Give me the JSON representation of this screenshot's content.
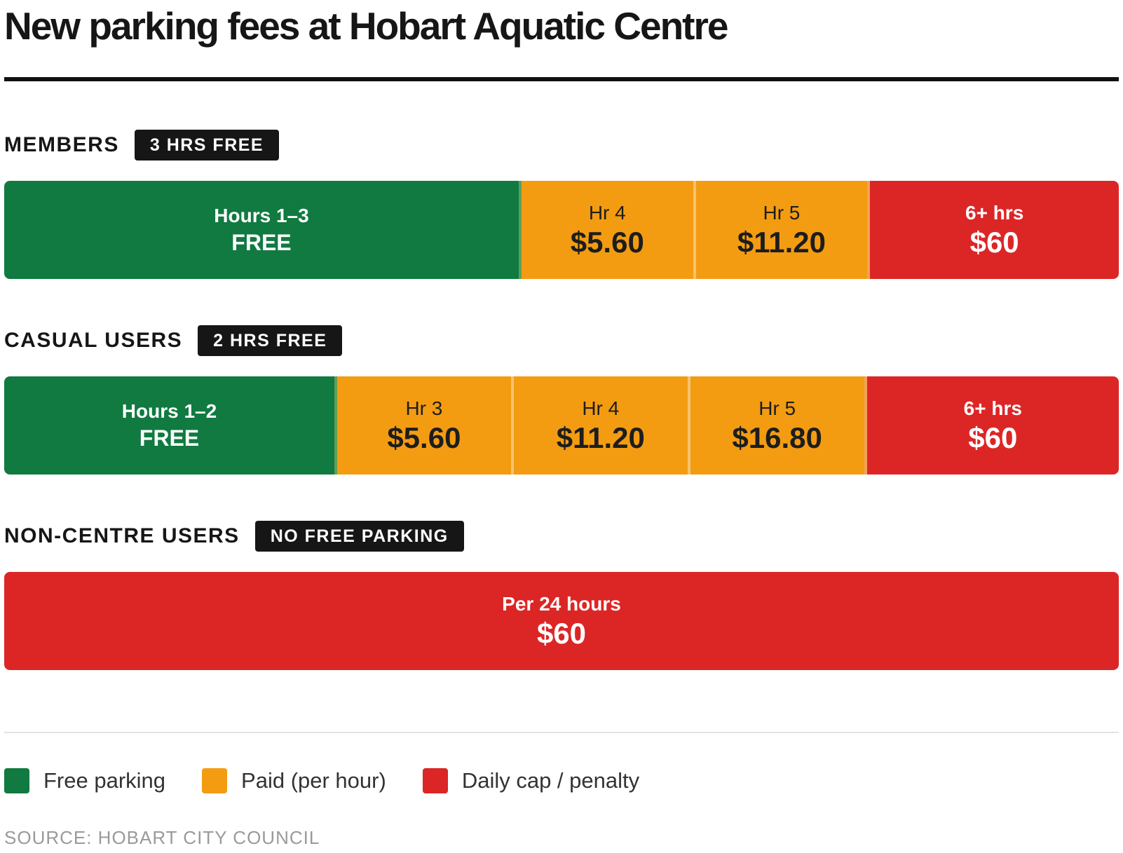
{
  "title": "New parking fees at Hobart Aquatic Centre",
  "colors": {
    "free": "#107a40",
    "paid": "#f39c12",
    "cap": "#dc2626"
  },
  "chart_data": {
    "type": "table",
    "groups": [
      {
        "name": "MEMBERS",
        "badge": "3 HRS FREE",
        "segments": [
          {
            "label": "Hours 1–3",
            "value": "FREE",
            "kind": "free",
            "hours": 3
          },
          {
            "label": "Hr 4",
            "value": "$5.60",
            "kind": "paid",
            "hours": 1
          },
          {
            "label": "Hr 5",
            "value": "$11.20",
            "kind": "paid",
            "hours": 1
          },
          {
            "label": "6+ hrs",
            "value": "$60",
            "kind": "cap",
            "hours": 1.45
          }
        ]
      },
      {
        "name": "CASUAL USERS",
        "badge": "2 HRS FREE",
        "segments": [
          {
            "label": "Hours 1–2",
            "value": "FREE",
            "kind": "free",
            "hours": 1.9
          },
          {
            "label": "Hr 3",
            "value": "$5.60",
            "kind": "paid",
            "hours": 1
          },
          {
            "label": "Hr 4",
            "value": "$11.20",
            "kind": "paid",
            "hours": 1
          },
          {
            "label": "Hr 5",
            "value": "$16.80",
            "kind": "paid",
            "hours": 1
          },
          {
            "label": "6+ hrs",
            "value": "$60",
            "kind": "cap",
            "hours": 1.45
          }
        ]
      },
      {
        "name": "NON-CENTRE USERS",
        "badge": "NO FREE PARKING",
        "segments": [
          {
            "label": "Per 24 hours",
            "value": "$60",
            "kind": "cap",
            "hours": 1
          }
        ]
      }
    ],
    "legend": [
      {
        "label": "Free parking",
        "kind": "free"
      },
      {
        "label": "Paid (per hour)",
        "kind": "paid"
      },
      {
        "label": "Daily cap / penalty",
        "kind": "cap"
      }
    ]
  },
  "source": "SOURCE: HOBART CITY COUNCIL"
}
